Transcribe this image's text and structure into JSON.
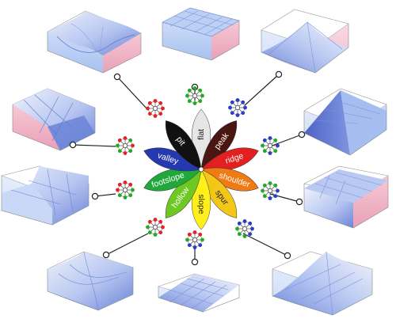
{
  "colors": {
    "surface_light": "#dfe8f8",
    "surface_mid": "#a9bdf0",
    "surface_dark": "#6f86d8",
    "side_pink": "#f2b5c8",
    "side_blue": "#b8cff5",
    "wire": "#777777",
    "node_red": "#e0242a",
    "node_green": "#22aa22",
    "node_blue": "#2a3ec0"
  },
  "landforms": [
    {
      "label": "flat",
      "color": "#e6e6e6",
      "text_dark": true,
      "node_pattern": "green-all",
      "surface": "flat"
    },
    {
      "label": "peak",
      "color": "#4a1612",
      "text_dark": false,
      "node_pattern": "blue-all",
      "surface": "peak"
    },
    {
      "label": "ridge",
      "color": "#e31f1f",
      "text_dark": false,
      "node_pattern": "blue-ridge",
      "surface": "ridge"
    },
    {
      "label": "shoulder",
      "color": "#f07a14",
      "text_dark": false,
      "node_pattern": "blue-shoulder",
      "surface": "shoulder"
    },
    {
      "label": "spur",
      "color": "#f2c717",
      "text_dark": true,
      "node_pattern": "blue-spur",
      "surface": "spur"
    },
    {
      "label": "slope",
      "color": "#fff01a",
      "text_dark": true,
      "node_pattern": "mixed-slope",
      "surface": "slope"
    },
    {
      "label": "hollow",
      "color": "#6ec822",
      "text_dark": false,
      "node_pattern": "red-hollow",
      "surface": "hollow"
    },
    {
      "label": "footslope",
      "color": "#22a83a",
      "text_dark": false,
      "node_pattern": "red-footslope",
      "surface": "footslope"
    },
    {
      "label": "valley",
      "color": "#2438b0",
      "text_dark": false,
      "node_pattern": "red-valley",
      "surface": "valley"
    },
    {
      "label": "pit",
      "color": "#111111",
      "text_dark": false,
      "node_pattern": "red-all",
      "surface": "pit"
    }
  ]
}
